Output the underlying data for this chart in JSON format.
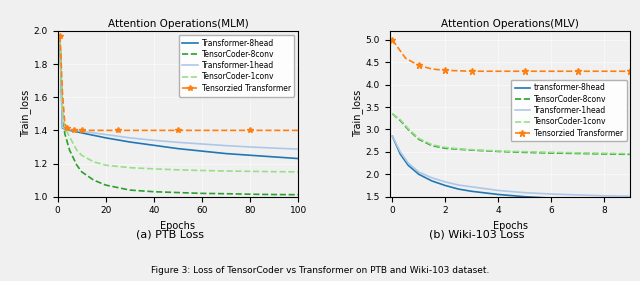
{
  "ptb": {
    "title": "Attention Operations(MLM)",
    "xlabel": "Epochs",
    "ylabel": "Train_loss",
    "xlim": [
      0,
      100
    ],
    "ylim": [
      1.0,
      2.0
    ],
    "yticks": [
      1.0,
      1.2,
      1.4,
      1.6,
      1.8,
      2.0
    ],
    "xticks": [
      0,
      20,
      40,
      60,
      80,
      100
    ],
    "series": [
      {
        "label": "Transformer-8head",
        "color": "#1f77b4",
        "linestyle": "-",
        "linewidth": 1.2,
        "marker": null,
        "x": [
          1,
          2,
          3,
          4,
          5,
          7,
          10,
          15,
          20,
          30,
          40,
          50,
          60,
          70,
          80,
          90,
          100
        ],
        "y": [
          1.95,
          1.415,
          1.408,
          1.405,
          1.4,
          1.395,
          1.385,
          1.37,
          1.355,
          1.33,
          1.31,
          1.29,
          1.275,
          1.26,
          1.25,
          1.24,
          1.23
        ]
      },
      {
        "label": "TensorCoder-8conv",
        "color": "#2ca02c",
        "linestyle": "--",
        "linewidth": 1.2,
        "marker": null,
        "x": [
          1,
          2,
          3,
          5,
          8,
          10,
          15,
          20,
          30,
          40,
          50,
          60,
          70,
          80,
          90,
          100
        ],
        "y": [
          1.93,
          1.5,
          1.38,
          1.28,
          1.19,
          1.15,
          1.1,
          1.07,
          1.04,
          1.03,
          1.025,
          1.02,
          1.018,
          1.015,
          1.013,
          1.012
        ]
      },
      {
        "label": "Transformer-1head",
        "color": "#aec7e8",
        "linestyle": "-",
        "linewidth": 1.2,
        "marker": null,
        "x": [
          1,
          2,
          3,
          4,
          5,
          7,
          10,
          15,
          20,
          30,
          40,
          50,
          60,
          70,
          80,
          90,
          100
        ],
        "y": [
          1.95,
          1.42,
          1.41,
          1.408,
          1.405,
          1.402,
          1.395,
          1.385,
          1.375,
          1.355,
          1.34,
          1.328,
          1.318,
          1.308,
          1.3,
          1.293,
          1.287
        ]
      },
      {
        "label": "TensorCoder-1conv",
        "color": "#98df8a",
        "linestyle": "--",
        "linewidth": 1.2,
        "marker": null,
        "x": [
          1,
          2,
          3,
          5,
          8,
          10,
          15,
          20,
          30,
          40,
          50,
          60,
          70,
          80,
          90,
          100
        ],
        "y": [
          1.93,
          1.53,
          1.42,
          1.36,
          1.28,
          1.25,
          1.21,
          1.19,
          1.175,
          1.168,
          1.162,
          1.158,
          1.155,
          1.153,
          1.151,
          1.15
        ]
      },
      {
        "label": "Tensorzied Transformer",
        "color": "#ff7f0e",
        "linestyle": "--",
        "linewidth": 1.2,
        "marker": "*",
        "markersize": 4,
        "markevery": 3,
        "x": [
          1,
          2,
          3,
          4,
          5,
          6,
          7,
          8,
          9,
          10,
          15,
          20,
          25,
          30,
          40,
          50,
          60,
          70,
          80,
          90,
          100
        ],
        "y": [
          1.97,
          1.63,
          1.44,
          1.415,
          1.405,
          1.403,
          1.401,
          1.4,
          1.4,
          1.4,
          1.4,
          1.4,
          1.4,
          1.4,
          1.4,
          1.4,
          1.4,
          1.4,
          1.4,
          1.4,
          1.4
        ]
      }
    ]
  },
  "wiki": {
    "title": "Attention Operations(MLV)",
    "xlabel": "Epochs",
    "ylabel": "Train_loss",
    "xlim": [
      -0.1,
      9
    ],
    "ylim": [
      1.5,
      5.2
    ],
    "yticks": [
      1.5,
      2.0,
      2.5,
      3.0,
      3.5,
      4.0,
      4.5,
      5.0
    ],
    "xticks": [
      0,
      2,
      4,
      6,
      8
    ],
    "series": [
      {
        "label": "transformer-8head",
        "color": "#1f77b4",
        "linestyle": "-",
        "linewidth": 1.2,
        "marker": null,
        "x": [
          0,
          0.3,
          0.6,
          1.0,
          1.5,
          2,
          2.5,
          3,
          4,
          5,
          6,
          7,
          8,
          9
        ],
        "y": [
          2.85,
          2.45,
          2.2,
          2.0,
          1.85,
          1.75,
          1.67,
          1.62,
          1.55,
          1.5,
          1.47,
          1.46,
          1.45,
          1.44
        ]
      },
      {
        "label": "TensorCoder-8conv",
        "color": "#2ca02c",
        "linestyle": "--",
        "linewidth": 1.2,
        "marker": null,
        "x": [
          0,
          0.3,
          0.6,
          1.0,
          1.5,
          2,
          2.5,
          3,
          4,
          5,
          6,
          7,
          8,
          9
        ],
        "y": [
          3.35,
          3.2,
          3.0,
          2.78,
          2.64,
          2.58,
          2.56,
          2.54,
          2.51,
          2.49,
          2.475,
          2.465,
          2.455,
          2.445
        ]
      },
      {
        "label": "Transformer-1head",
        "color": "#aec7e8",
        "linestyle": "-",
        "linewidth": 1.2,
        "marker": null,
        "x": [
          0,
          0.3,
          0.6,
          1.0,
          1.5,
          2,
          2.5,
          3,
          4,
          5,
          6,
          7,
          8,
          9
        ],
        "y": [
          2.85,
          2.5,
          2.25,
          2.05,
          1.92,
          1.83,
          1.76,
          1.72,
          1.64,
          1.59,
          1.56,
          1.54,
          1.52,
          1.51
        ]
      },
      {
        "label": "TensorCoder-1conv",
        "color": "#98df8a",
        "linestyle": "--",
        "linewidth": 1.2,
        "marker": null,
        "x": [
          0,
          0.3,
          0.6,
          1.0,
          1.5,
          2,
          2.5,
          3,
          4,
          5,
          6,
          7,
          8,
          9
        ],
        "y": [
          3.35,
          3.22,
          3.02,
          2.8,
          2.66,
          2.6,
          2.57,
          2.55,
          2.52,
          2.505,
          2.49,
          2.48,
          2.47,
          2.46
        ]
      },
      {
        "label": "Tensorzied Transformer",
        "color": "#ff7f0e",
        "linestyle": "--",
        "linewidth": 1.2,
        "marker": "*",
        "markersize": 5,
        "markevery": 2,
        "x": [
          0,
          0.5,
          1,
          1.5,
          2,
          2.5,
          3,
          4,
          5,
          6,
          7,
          8,
          9
        ],
        "y": [
          5.0,
          4.59,
          4.43,
          4.35,
          4.32,
          4.31,
          4.3,
          4.3,
          4.3,
          4.3,
          4.3,
          4.3,
          4.3
        ]
      }
    ]
  },
  "caption_a": "(a) PTB Loss",
  "caption_b": "(b) Wiki-103 Loss",
  "figure_caption": "Figure 3: Loss of TensorCoder vs Transformer on PTB and Wiki-103 dataset.",
  "bg_color": "#f0f0f0"
}
